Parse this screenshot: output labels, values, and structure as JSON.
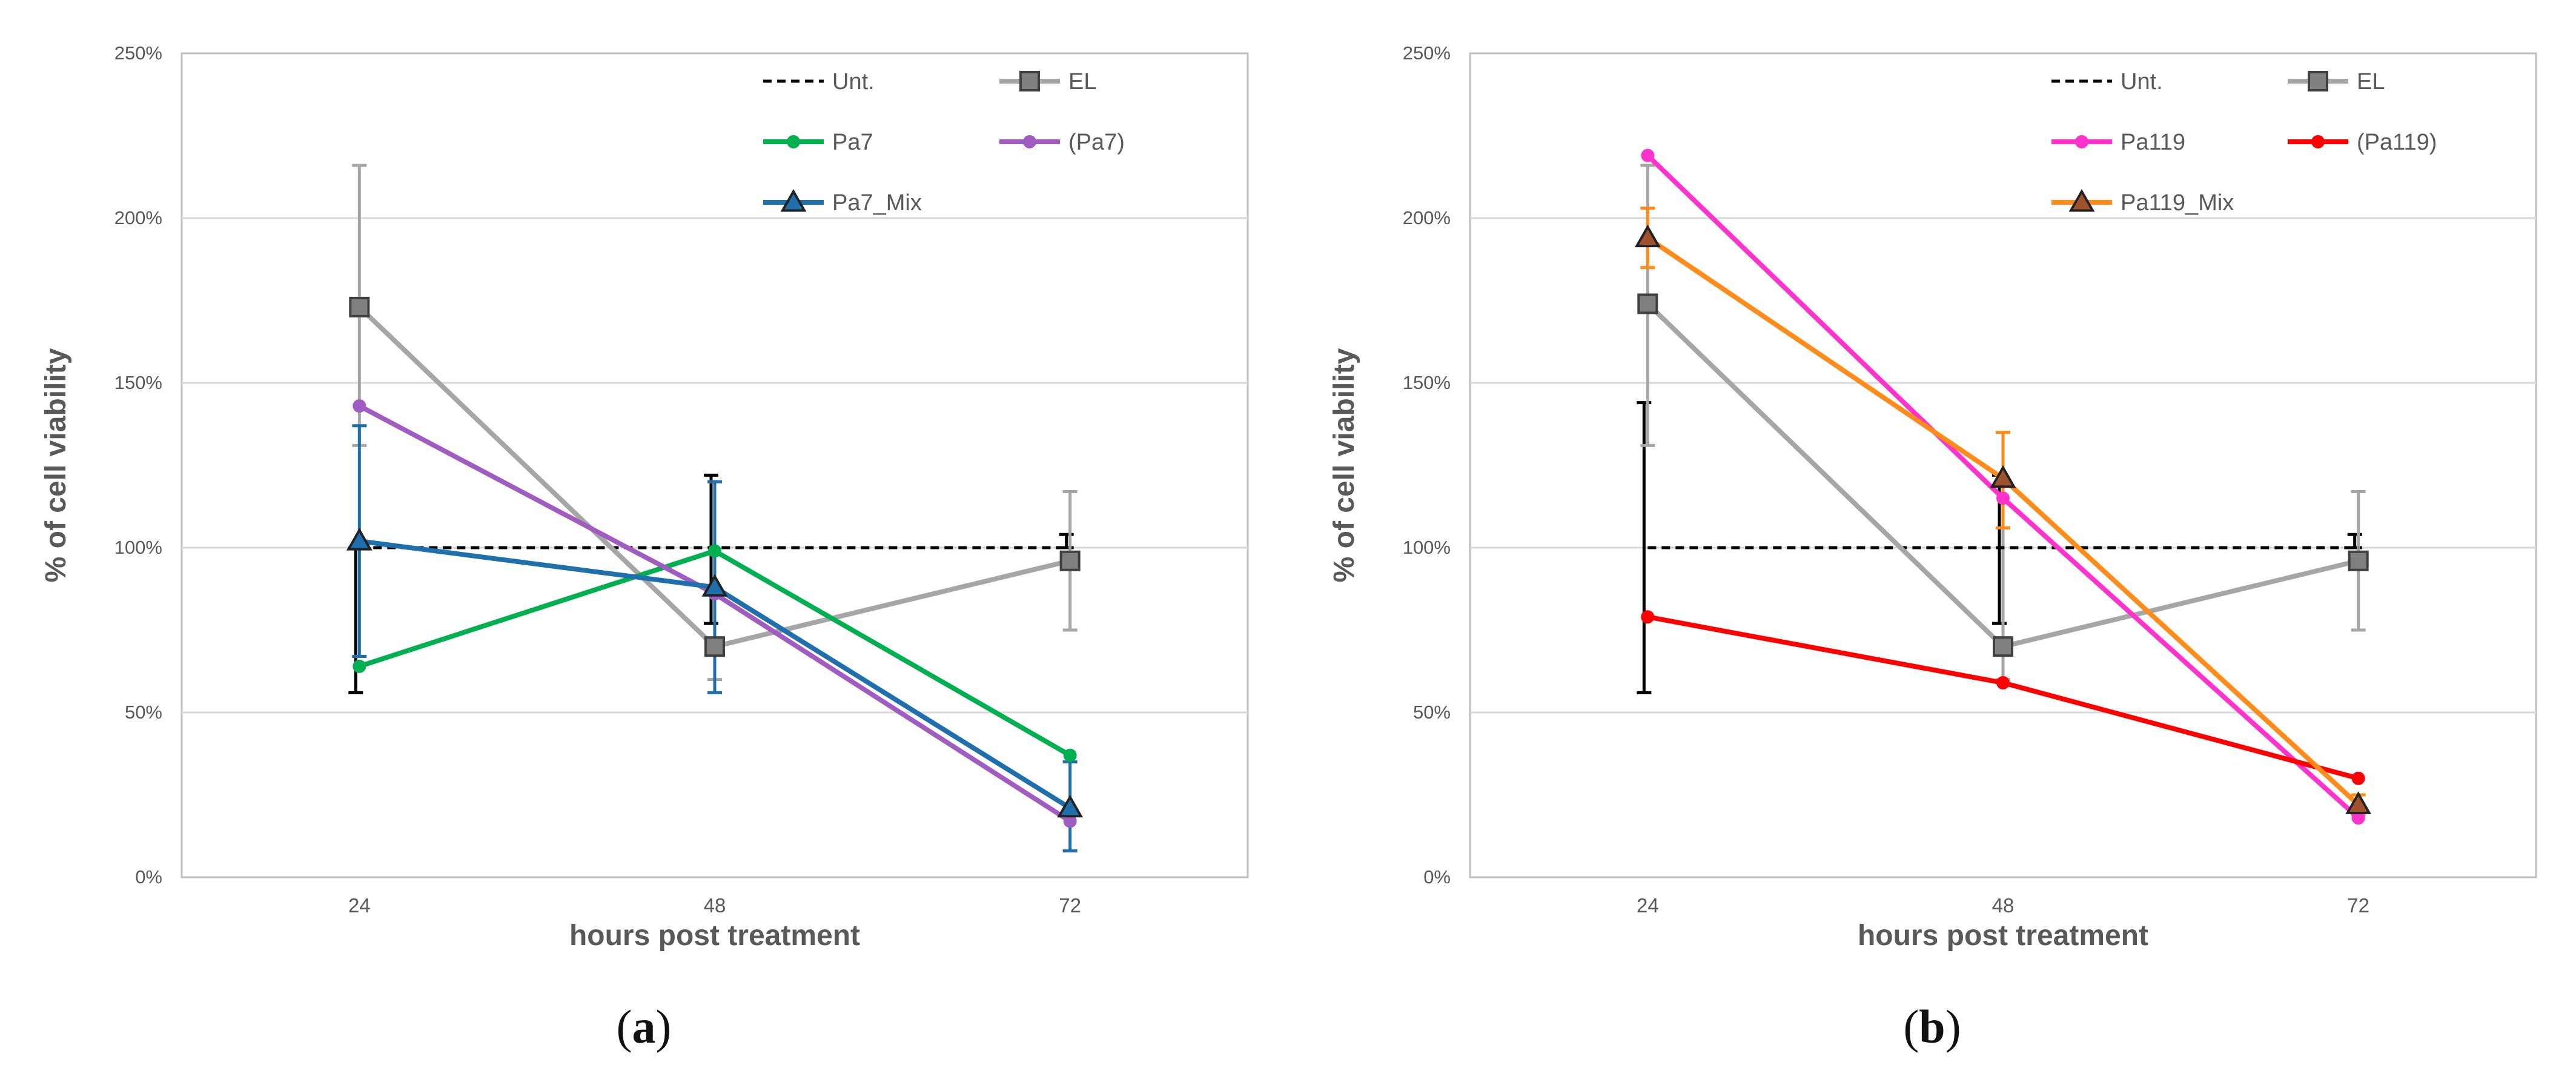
{
  "chart_data": [
    {
      "type": "line",
      "panel_label": "a",
      "xlabel": "hours post treatment",
      "ylabel": "% of cell viability",
      "categories": [
        "24",
        "48",
        "72"
      ],
      "ylim": [
        0,
        250
      ],
      "yticks": [
        "0%",
        "50%",
        "100%",
        "150%",
        "200%",
        "250%"
      ],
      "grid": true,
      "legend_position": "top-right",
      "series": [
        {
          "name": "Unt.",
          "values": [
            100,
            100,
            100
          ],
          "color": "#000000",
          "dash": true,
          "marker": "none",
          "err": [
            [
              56,
              100
            ],
            [
              77,
              122
            ],
            [
              100,
              104
            ]
          ]
        },
        {
          "name": "EL",
          "values": [
            173,
            70,
            96
          ],
          "color": "#a6a6a6",
          "marker": "square",
          "err": [
            [
              131,
              216
            ],
            [
              60,
              120
            ],
            [
              75,
              117
            ]
          ]
        },
        {
          "name": "Pa7",
          "values": [
            64,
            99,
            37
          ],
          "color": "#00b050",
          "marker": "circle",
          "err": null
        },
        {
          "name": "(Pa7)",
          "values": [
            143,
            86,
            17
          ],
          "color": "#a05cc0",
          "marker": "circle",
          "err": null
        },
        {
          "name": "Pa7_Mix",
          "values": [
            102,
            88,
            21
          ],
          "color": "#1f6fad",
          "marker": "triangle",
          "err": [
            [
              67,
              137
            ],
            [
              56,
              120
            ],
            [
              8,
              35
            ]
          ]
        }
      ]
    },
    {
      "type": "line",
      "panel_label": "b",
      "xlabel": "hours post treatment",
      "ylabel": "% of cell viability",
      "categories": [
        "24",
        "48",
        "72"
      ],
      "ylim": [
        0,
        250
      ],
      "yticks": [
        "0%",
        "50%",
        "100%",
        "150%",
        "200%",
        "250%"
      ],
      "grid": true,
      "legend_position": "top-right",
      "series": [
        {
          "name": "Unt.",
          "values": [
            100,
            100,
            100
          ],
          "color": "#000000",
          "dash": true,
          "marker": "none",
          "err": [
            [
              56,
              144
            ],
            [
              77,
              122
            ],
            [
              100,
              104
            ]
          ]
        },
        {
          "name": "EL",
          "values": [
            174,
            70,
            96
          ],
          "color": "#a6a6a6",
          "marker": "square",
          "err": [
            [
              131,
              216
            ],
            [
              60,
              120
            ],
            [
              75,
              117
            ]
          ]
        },
        {
          "name": "Pa119",
          "values": [
            219,
            115,
            18
          ],
          "color": "#ff33cc",
          "marker": "circle",
          "err": null
        },
        {
          "name": "(Pa119)",
          "values": [
            79,
            59,
            30
          ],
          "color": "#ff0000",
          "marker": "circle",
          "err": null
        },
        {
          "name": "Pa119_Mix",
          "values": [
            194,
            121,
            22
          ],
          "color": "#ff8c1a",
          "marker": "triangle",
          "marker_fill": "#a0522d",
          "err": [
            [
              185,
              203
            ],
            [
              106,
              135
            ],
            [
              19,
              25
            ]
          ]
        }
      ]
    }
  ]
}
